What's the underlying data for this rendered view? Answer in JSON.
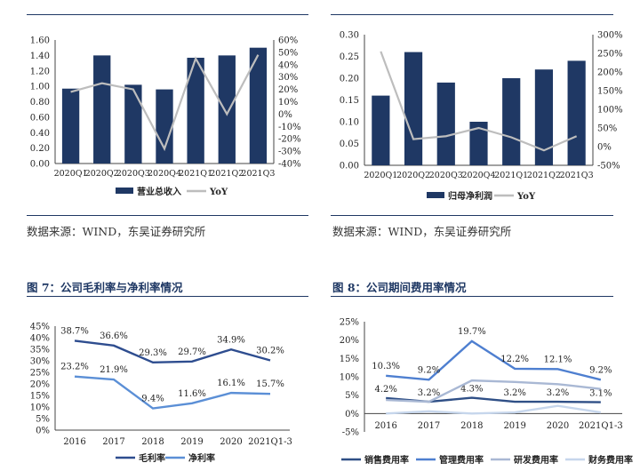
{
  "sources": {
    "left": "数据来源：WIND，东吴证券研究所",
    "right": "数据来源：WIND，东吴证券研究所"
  },
  "figures": {
    "fig7_title": "图 7：公司毛利率与净利率情况",
    "fig8_title": "图 8：公司期间费用率情况"
  },
  "colors": {
    "bar": "#1f3864",
    "yoy_line": "#bdbdbd",
    "gross_margin": "#2e4d8f",
    "net_margin": "#5b8fd6",
    "sales_exp": "#2f4f86",
    "admin_exp": "#4e7fd0",
    "rd_exp": "#a9b8d4",
    "fin_exp": "#c6d6ec"
  },
  "chart_data": [
    {
      "id": "revenue",
      "type": "bar",
      "categories": [
        "2020Q1",
        "2020Q2",
        "2020Q3",
        "2020Q4",
        "2021Q1",
        "2021Q2",
        "2021Q3"
      ],
      "series": [
        {
          "name": "营业总收入",
          "type": "bar",
          "axis": "left",
          "values": [
            0.97,
            1.4,
            1.02,
            0.96,
            1.37,
            1.4,
            1.5
          ]
        },
        {
          "name": "YoY",
          "type": "line",
          "axis": "right",
          "values": [
            18,
            25,
            20,
            -28,
            45,
            0,
            48
          ]
        }
      ],
      "left_ticks": [
        "1.60",
        "1.40",
        "1.20",
        "1.00",
        "0.80",
        "0.60",
        "0.40",
        "0.20",
        "0.00"
      ],
      "right_ticks": [
        "60%",
        "50%",
        "40%",
        "30%",
        "20%",
        "10%",
        "0%",
        "-10%",
        "-20%",
        "-30%",
        "-40%"
      ],
      "ylim_left": [
        0,
        1.6
      ],
      "ylim_right": [
        -40,
        60
      ],
      "legend": "bottom"
    },
    {
      "id": "net_profit",
      "type": "bar",
      "categories": [
        "2020Q1",
        "2020Q2",
        "2020Q3",
        "2020Q4",
        "2021Q1",
        "2021Q2",
        "2021Q3"
      ],
      "series": [
        {
          "name": "归母净利润",
          "type": "bar",
          "axis": "left",
          "values": [
            0.16,
            0.26,
            0.19,
            0.1,
            0.2,
            0.22,
            0.24
          ]
        },
        {
          "name": "YoY",
          "type": "line",
          "axis": "right",
          "values": [
            255,
            20,
            28,
            50,
            25,
            -10,
            28
          ]
        }
      ],
      "left_ticks": [
        "0.30",
        "0.25",
        "0.20",
        "0.15",
        "0.10",
        "0.05",
        "0.00"
      ],
      "right_ticks": [
        "300%",
        "250%",
        "200%",
        "150%",
        "100%",
        "50%",
        "0%",
        "-50%"
      ],
      "ylim_left": [
        0,
        0.3
      ],
      "ylim_right": [
        -50,
        300
      ],
      "legend": "bottom"
    },
    {
      "id": "margins",
      "type": "line",
      "categories": [
        "2016",
        "2017",
        "2018",
        "2019",
        "2020",
        "2021Q1-3"
      ],
      "series": [
        {
          "name": "毛利率",
          "values": [
            38.7,
            36.6,
            29.3,
            29.7,
            34.9,
            30.2
          ],
          "labels": [
            "38.7%",
            "36.6%",
            "29.3%",
            "29.7%",
            "34.9%",
            "30.2%"
          ]
        },
        {
          "name": "净利率",
          "values": [
            23.2,
            21.9,
            9.4,
            11.6,
            16.1,
            15.7
          ],
          "labels": [
            "23.2%",
            "21.9%",
            "9.4%",
            "11.6%",
            "16.1%",
            "15.7%"
          ]
        }
      ],
      "y_ticks": [
        "45%",
        "40%",
        "35%",
        "30%",
        "25%",
        "20%",
        "15%",
        "10%",
        "5%",
        "0%"
      ],
      "ylim": [
        0,
        45
      ],
      "legend": "bottom"
    },
    {
      "id": "expenses",
      "type": "line",
      "categories": [
        "2016",
        "2017",
        "2018",
        "2019",
        "2020",
        "2021Q1-3"
      ],
      "series": [
        {
          "name": "销售费用率",
          "values": [
            4.2,
            3.2,
            4.3,
            3.2,
            3.2,
            3.1
          ],
          "labels": [
            "4.2%",
            "",
            "4.3%",
            "3.2%",
            "3.2%",
            "3.1%"
          ]
        },
        {
          "name": "管理费用率",
          "values": [
            10.3,
            9.2,
            19.7,
            12.2,
            12.1,
            9.2
          ],
          "labels": [
            "10.3%",
            "9.2%",
            "19.7%",
            "12.2%",
            "12.1%",
            "9.2%"
          ]
        },
        {
          "name": "研发费用率",
          "values": [
            3.7,
            3.2,
            9.0,
            8.6,
            8.0,
            6.7
          ],
          "labels": [
            "",
            "3.2%",
            "",
            "",
            "",
            ""
          ]
        },
        {
          "name": "财务费用率",
          "values": [
            0.0,
            0.6,
            0.0,
            0.3,
            2.1,
            0.3
          ],
          "labels": [
            "",
            "",
            "",
            "",
            "",
            ""
          ]
        }
      ],
      "y_ticks": [
        "25%",
        "20%",
        "15%",
        "10%",
        "5%",
        "0%",
        "-5%"
      ],
      "ylim": [
        -5,
        25
      ],
      "legend": "bottom"
    }
  ]
}
